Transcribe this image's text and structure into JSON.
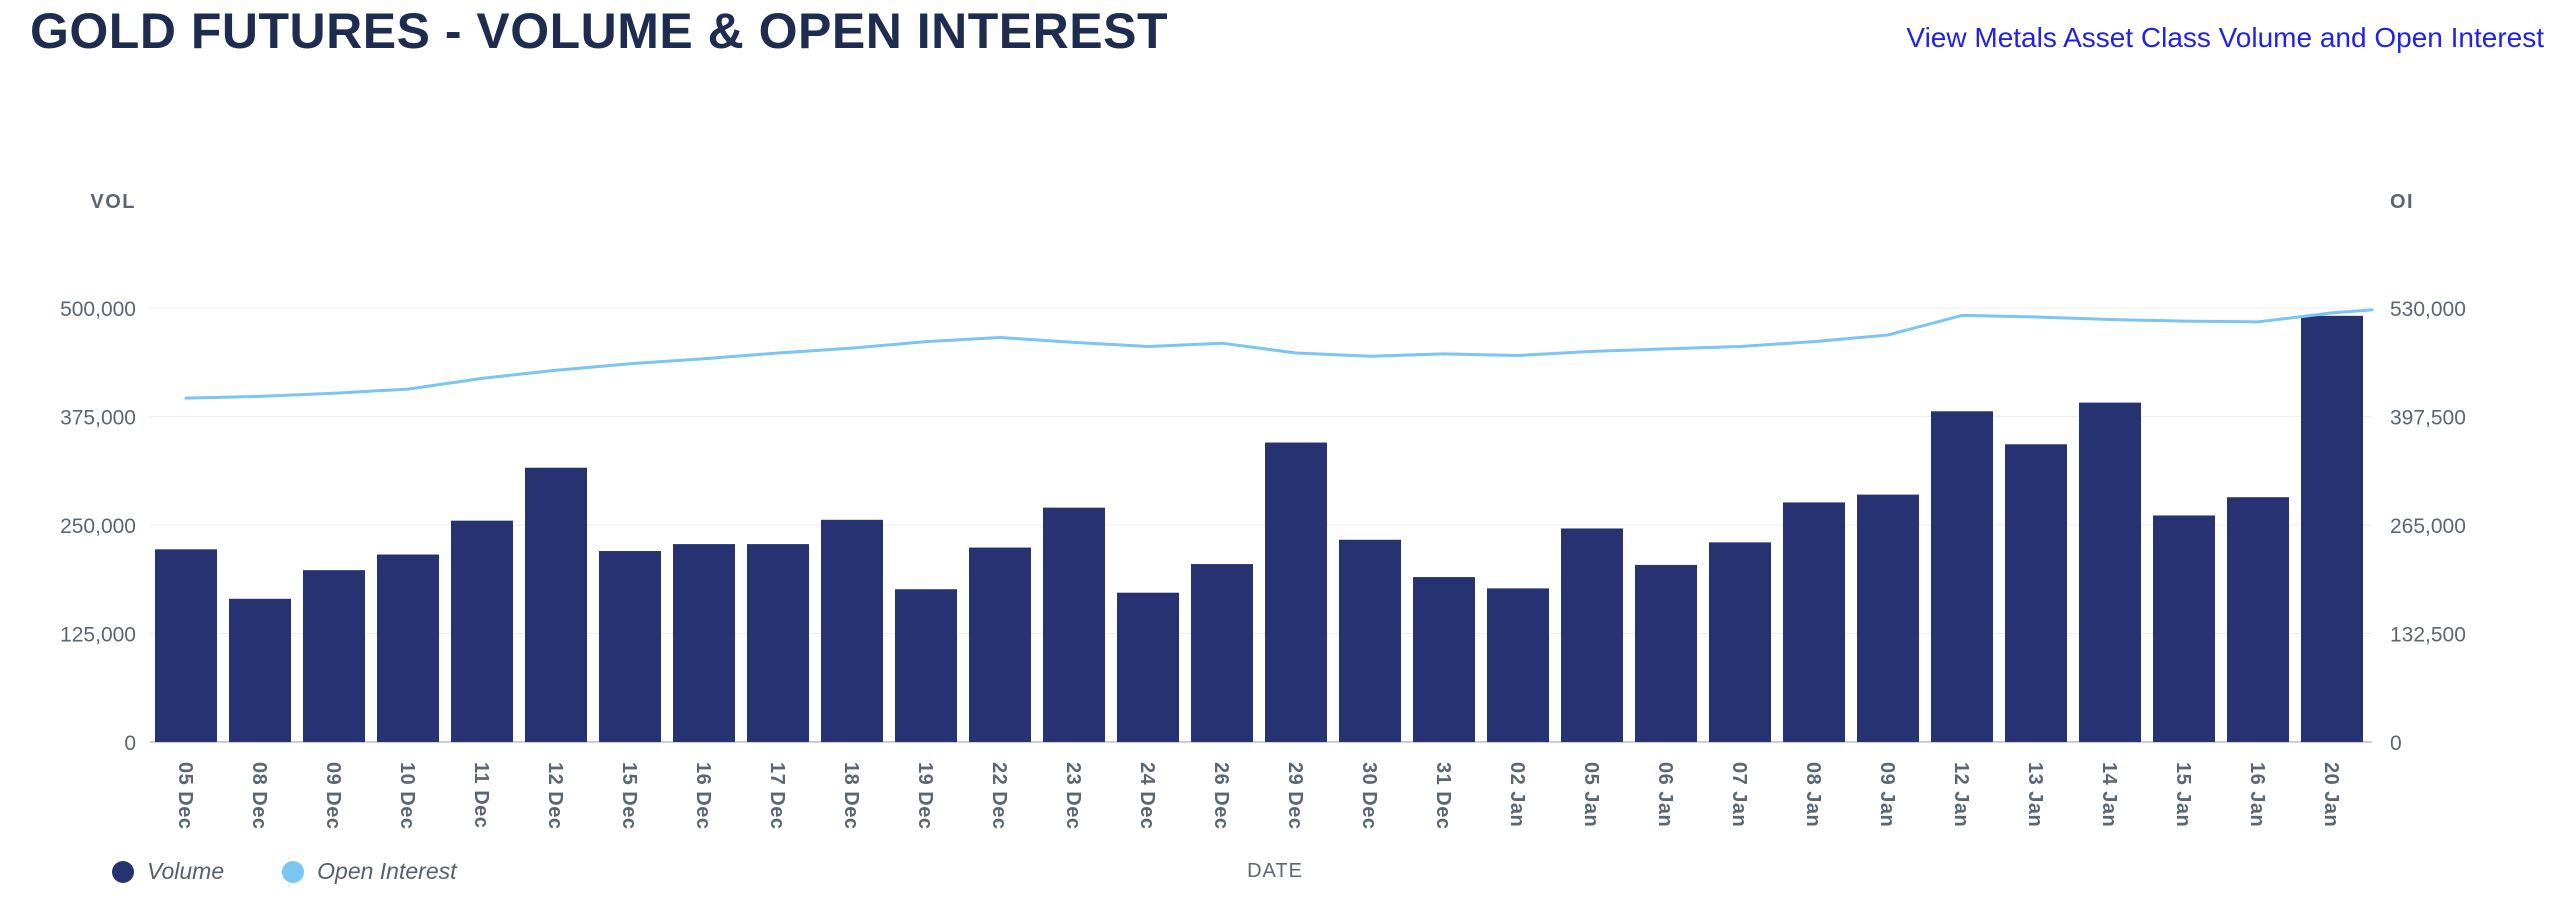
{
  "header": {
    "title": "GOLD FUTURES - VOLUME & OPEN INTEREST",
    "link": "View Metals Asset Class Volume and Open Interest"
  },
  "colors": {
    "title": "#1e2c4f",
    "link_blue": "#2121e8",
    "volume_bar": "#263271",
    "open_interest_line": "#7cc5f1",
    "axis_text": "#5b6673",
    "gridline": "#ececec",
    "baseline": "#ccd0d5",
    "background": "#ffffff"
  },
  "chart_data": {
    "type": "bar",
    "subtype": "combo-bar-line-dual-axis",
    "title": "GOLD FUTURES - VOLUME & OPEN INTEREST",
    "xlabel": "DATE",
    "grid": true,
    "legend_position": "bottom-left",
    "categories": [
      "05 Dec",
      "08 Dec",
      "09 Dec",
      "10 Dec",
      "11 Dec",
      "12 Dec",
      "15 Dec",
      "16 Dec",
      "17 Dec",
      "18 Dec",
      "19 Dec",
      "22 Dec",
      "23 Dec",
      "24 Dec",
      "26 Dec",
      "29 Dec",
      "30 Dec",
      "31 Dec",
      "02 Jan",
      "05 Jan",
      "06 Jan",
      "07 Jan",
      "08 Jan",
      "09 Jan",
      "12 Jan",
      "13 Jan",
      "14 Jan",
      "15 Jan",
      "16 Jan",
      "20 Jan"
    ],
    "series": [
      {
        "name": "Volume",
        "type": "bar",
        "axis": "left",
        "color": "#263271",
        "values": [
          222000,
          165000,
          198000,
          216000,
          255000,
          316000,
          220000,
          228000,
          228000,
          256000,
          176000,
          224000,
          270000,
          172000,
          205000,
          345000,
          233000,
          190000,
          177000,
          246000,
          204000,
          230000,
          276000,
          285000,
          381000,
          343000,
          391000,
          261000,
          282000,
          491000
        ]
      },
      {
        "name": "Open Interest",
        "type": "line",
        "axis": "right",
        "color": "#7cc5f1",
        "values": [
          420000,
          422000,
          426000,
          431000,
          444000,
          454000,
          462000,
          468000,
          475000,
          481000,
          489000,
          494000,
          488000,
          483000,
          487000,
          475000,
          471000,
          474000,
          472000,
          477000,
          480000,
          483000,
          489000,
          497000,
          521000,
          519000,
          516000,
          514000,
          513000,
          524000
        ]
      }
    ],
    "left_axis": {
      "label": "VOL",
      "max": 500000,
      "tick_values": [
        0,
        125000,
        250000,
        375000,
        500000
      ]
    },
    "right_axis": {
      "label": "OI",
      "max": 530000,
      "tick_values": [
        0,
        132500,
        265000,
        397500,
        530000
      ]
    }
  }
}
